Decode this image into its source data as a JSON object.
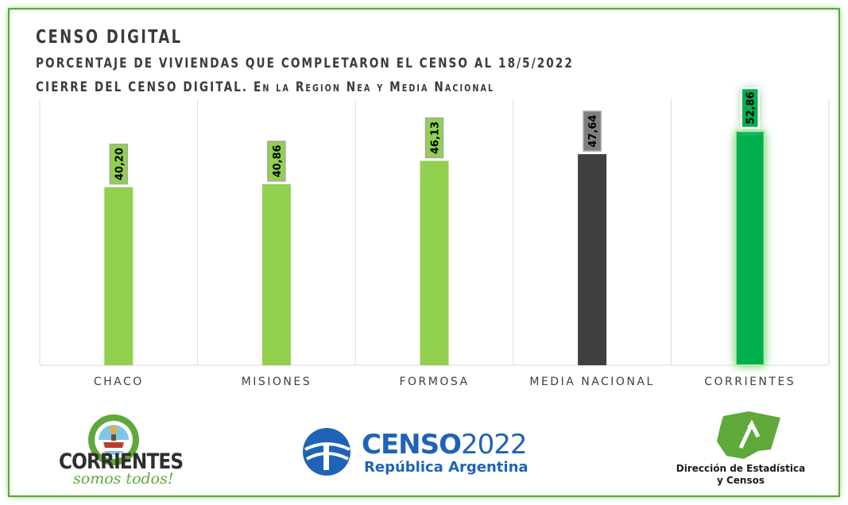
{
  "header": {
    "title": "CENSO  DIGITAL",
    "subtitle_line1": "PORCENTAJE DE VIVIENDAS QUE COMPLETARON EL CENSO AL 18/5/2022",
    "subtitle_line2_main": "CIERRE DEL CENSO DIGITAL.",
    "subtitle_line2_detail": "En la Region Nea y Media Nacional"
  },
  "chart_data": {
    "type": "bar",
    "categories": [
      "CHACO",
      "MISIONES",
      "FORMOSA",
      "MEDIA NACIONAL",
      "CORRIENTES"
    ],
    "values": [
      40.2,
      40.86,
      46.13,
      47.64,
      52.86
    ],
    "value_labels": [
      "40,20",
      "40,86",
      "46,13",
      "47,64",
      "52,86"
    ],
    "bar_colors": [
      "#92d050",
      "#92d050",
      "#92d050",
      "#404040",
      "#00b050"
    ],
    "label_box_colors": [
      "#92d050",
      "#92d050",
      "#92d050",
      "#7f7f7f",
      "#00b050"
    ],
    "highlight_index": 4,
    "ylim": [
      0,
      60
    ],
    "grid": "vertical separators",
    "legend": "none"
  },
  "footer": {
    "corrientes_name": "CORRIENTES",
    "corrientes_tagline": "somos todos!",
    "corrientes_seal_icon": "provincial-seal-icon",
    "censo_brand": "CENSO",
    "censo_year": "2022",
    "censo_country": "República Argentina",
    "censo_icon": "censo-globe-icon",
    "direccion_line1": "Dirección de Estadística",
    "direccion_line2": "y Censos",
    "direccion_icon": "map-arrow-icon"
  },
  "colors": {
    "frame": "#5fa83a",
    "text": "#3b3b3b",
    "censo_blue": "#1f63b8",
    "green": "#5fa83a"
  }
}
